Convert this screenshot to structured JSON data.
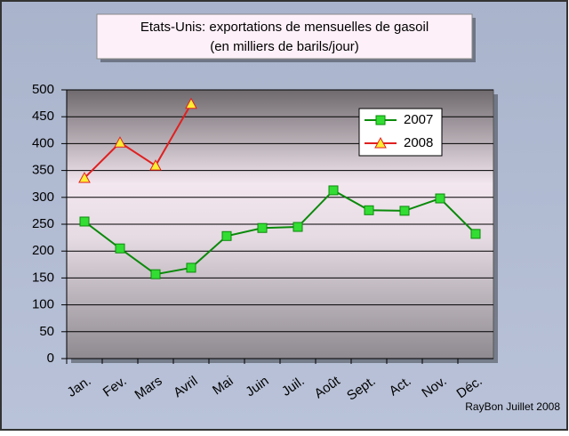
{
  "chart_data": {
    "type": "line",
    "title": "Etats-Unis: exportations de mensuelles de gasoil",
    "subtitle": "(en milliers de barils/jour)",
    "annotation": "RayBon Juillet 2008",
    "categories": [
      "Jan.",
      "Fev.",
      "Mars",
      "Avril",
      "Mai",
      "Juin",
      "Juil.",
      "Août",
      "Sept.",
      "Act.",
      "Nov.",
      "Déc."
    ],
    "series": [
      {
        "name": "2007",
        "color": "#0a8a0a",
        "marker": "square",
        "marker_color": "#33dd33",
        "values": [
          255,
          205,
          157,
          169,
          228,
          243,
          245,
          313,
          276,
          275,
          298,
          232
        ]
      },
      {
        "name": "2008",
        "color": "#e02020",
        "marker": "triangle",
        "marker_color": "#ffee33",
        "values": [
          336,
          402,
          359,
          474,
          null,
          null,
          null,
          null,
          null,
          null,
          null,
          null
        ]
      }
    ],
    "ylim": [
      0,
      500
    ],
    "yticks": [
      0,
      50,
      100,
      150,
      200,
      250,
      300,
      350,
      400,
      450,
      500
    ],
    "grid": true,
    "legend": "top-right"
  }
}
